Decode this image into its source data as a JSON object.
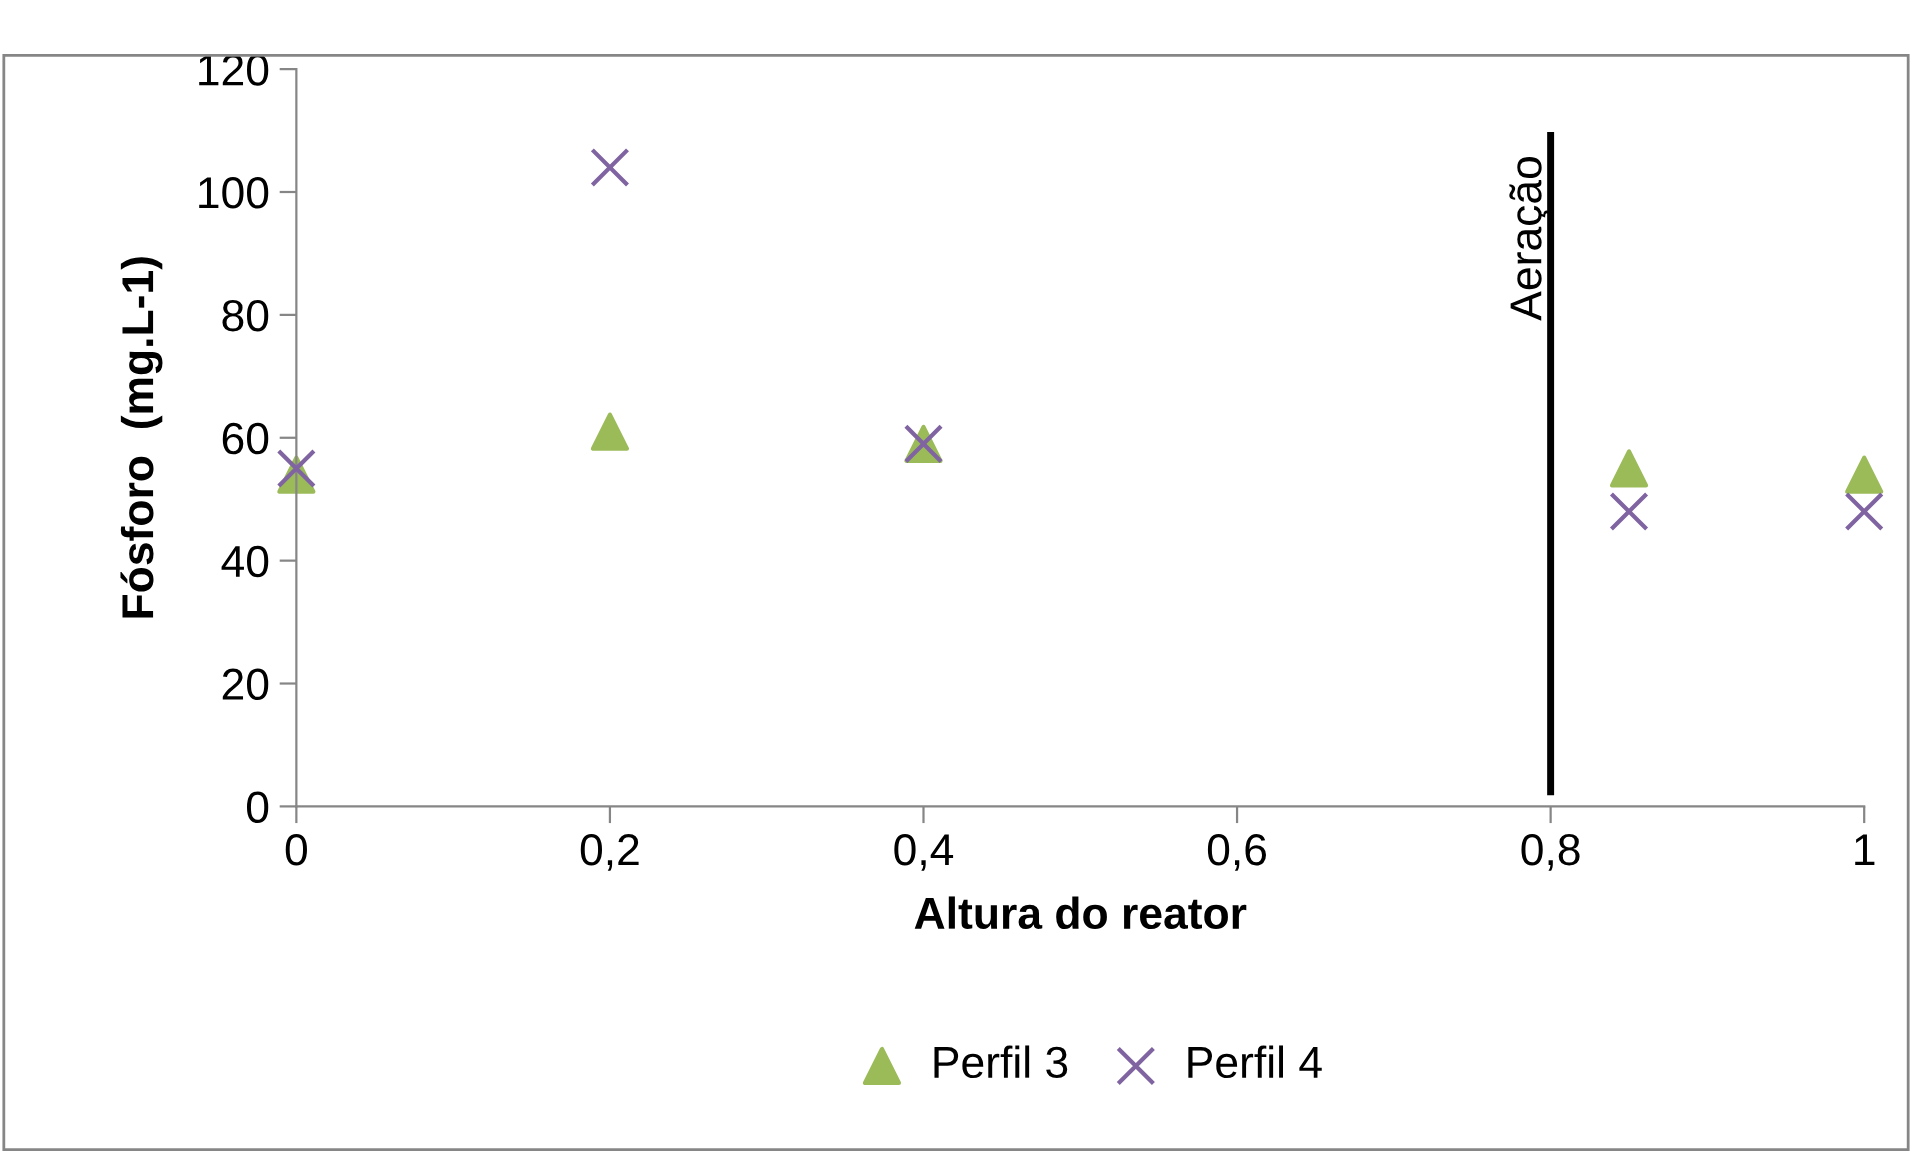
{
  "chart_data": {
    "type": "scatter",
    "xlabel": "Altura do reator",
    "ylabel": "Fósforo  (mg.L-1)",
    "series": [
      {
        "name": "Perfil 3",
        "color": "#9bbb59",
        "marker": "triangle",
        "x": [
          0,
          0.2,
          0.4,
          0.85,
          1
        ],
        "values": [
          54,
          61,
          59,
          55,
          54
        ]
      },
      {
        "name": "Perfil 4",
        "color": "#8064a2",
        "marker": "cross",
        "x": [
          0,
          0.2,
          0.4,
          0.85,
          1
        ],
        "values": [
          55,
          104,
          59,
          48,
          48
        ]
      }
    ],
    "xlim": [
      0,
      1
    ],
    "xticks": [
      0,
      {
        "value": 0.2,
        "label": "0,2"
      },
      {
        "value": 0.4,
        "label": "0,4"
      },
      {
        "value": 0.6,
        "label": "0,6"
      },
      {
        "value": 0.8,
        "label": "0,8"
      },
      1
    ],
    "ylim": [
      0,
      120
    ],
    "yticks": [
      0,
      20,
      40,
      60,
      80,
      100,
      120
    ],
    "ref_lines": [
      {
        "axis": "x",
        "value": 0.8,
        "label": "Aeração",
        "color": "#000000"
      }
    ],
    "legend": "bottom",
    "grid": false
  }
}
